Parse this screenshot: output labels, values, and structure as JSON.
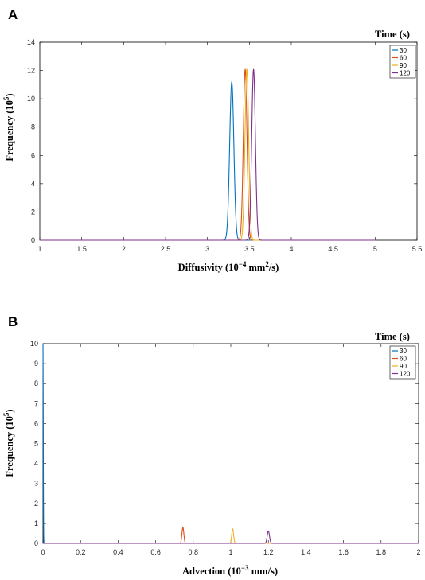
{
  "chart_data": [
    {
      "panel": "A",
      "type": "line",
      "xlim": [
        1,
        5.5
      ],
      "ylim": [
        0,
        14
      ],
      "x_ticks": [
        "1",
        "1.5",
        "2",
        "2.5",
        "3",
        "3.5",
        "4",
        "4.5",
        "5",
        "5.5"
      ],
      "y_ticks": [
        "0",
        "2",
        "4",
        "6",
        "8",
        "10",
        "12",
        "14"
      ],
      "xlabel": {
        "main": "Diffusivity (10",
        "exp": "−4",
        "mid": " mm",
        "exp2": "2",
        "tail": "/s)"
      },
      "ylabel": {
        "main": "Frequency (10",
        "exp": "5",
        "tail": ")"
      },
      "x_range_end": 5,
      "legend": {
        "title": "Time (s)",
        "position": "top-right"
      },
      "series": [
        {
          "name": "30",
          "color": "#0072BD",
          "peak_x": 3.29,
          "peak_y": 11.2,
          "width": 0.025
        },
        {
          "name": "60",
          "color": "#D95319",
          "peak_x": 3.45,
          "peak_y": 12.1,
          "width": 0.022
        },
        {
          "name": "90",
          "color": "#EDB120",
          "peak_x": 3.47,
          "peak_y": 12.1,
          "width": 0.022
        },
        {
          "name": "120",
          "color": "#7E2F8E",
          "peak_x": 3.55,
          "peak_y": 12.1,
          "width": 0.022
        }
      ],
      "grid": false
    },
    {
      "panel": "B",
      "type": "line",
      "xlim": [
        0,
        2
      ],
      "ylim": [
        0,
        10
      ],
      "x_ticks": [
        "0",
        "0.2",
        "0.4",
        "0.6",
        "0.8",
        "1",
        "1.2",
        "1.4",
        "1.6",
        "1.8",
        "2"
      ],
      "y_ticks": [
        "0",
        "1",
        "2",
        "3",
        "4",
        "5",
        "6",
        "7",
        "8",
        "9",
        "10"
      ],
      "xlabel": {
        "main": "Advection (10",
        "exp": "−3",
        "tail": " mm/s)"
      },
      "ylabel": {
        "main": "Frequency (10",
        "exp": "5",
        "tail": ")"
      },
      "legend": {
        "title": "Time (s)",
        "position": "top-right"
      },
      "series": [
        {
          "name": "30",
          "color": "#0072BD",
          "peak_x": 0.0,
          "peak_y": 10.0,
          "width": 0.0015
        },
        {
          "name": "60",
          "color": "#D95319",
          "peak_x": 0.745,
          "peak_y": 0.8,
          "width": 0.005
        },
        {
          "name": "90",
          "color": "#EDB120",
          "peak_x": 1.01,
          "peak_y": 0.72,
          "width": 0.005
        },
        {
          "name": "120",
          "color": "#7E2F8E",
          "peak_x": 1.2,
          "peak_y": 0.62,
          "width": 0.006
        }
      ],
      "grid": false
    }
  ]
}
